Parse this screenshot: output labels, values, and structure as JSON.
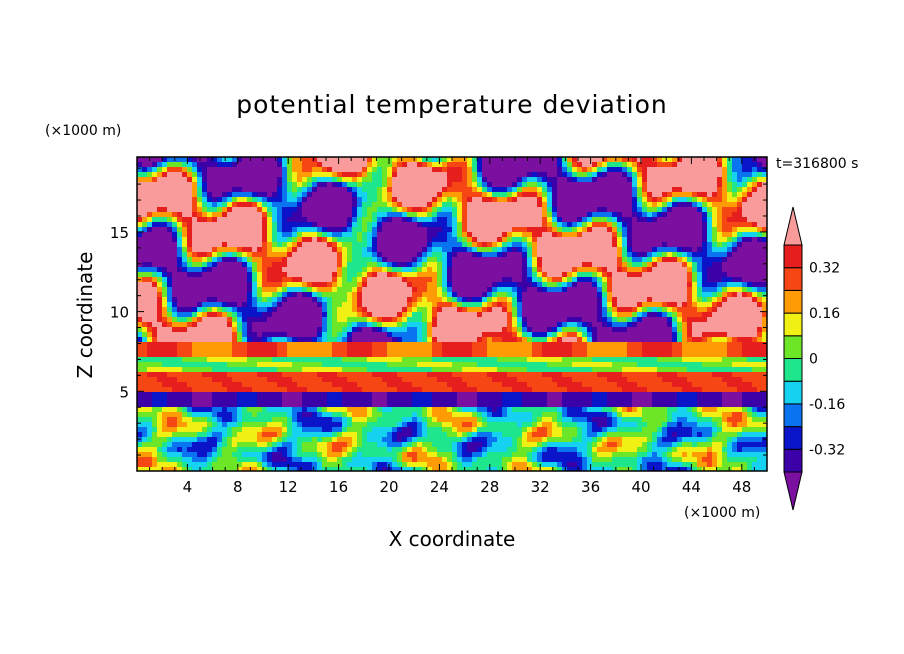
{
  "chart_data": {
    "type": "heatmap",
    "title": "potential temperature deviation",
    "time_label": "t=316800 s",
    "xlabel": "X coordinate",
    "ylabel": "Z coordinate",
    "x_unit": "(×1000 m)",
    "y_unit": "(×1000 m)",
    "xlim": [
      0,
      50
    ],
    "ylim": [
      0,
      19.7
    ],
    "x_ticks": [
      4,
      8,
      12,
      16,
      20,
      24,
      28,
      32,
      36,
      40,
      44,
      48
    ],
    "y_ticks": [
      5,
      10,
      15
    ],
    "colorbar": {
      "levels": [
        -0.4,
        -0.32,
        -0.24,
        -0.16,
        -0.08,
        0,
        0.08,
        0.16,
        0.24,
        0.32,
        0.4
      ],
      "labels": [
        "-0.32",
        "-0.16",
        "0",
        "0.16",
        "0.32"
      ],
      "label_values": [
        -0.32,
        -0.16,
        0,
        0.16,
        0.32
      ],
      "colors": [
        "#7a0fa0",
        "#3c00a8",
        "#0a14c8",
        "#0a73f0",
        "#14d2f0",
        "#1ee68c",
        "#6ee628",
        "#f0f014",
        "#ff9b05",
        "#f54614",
        "#e61e1e",
        "#fa9b9b"
      ]
    }
  }
}
